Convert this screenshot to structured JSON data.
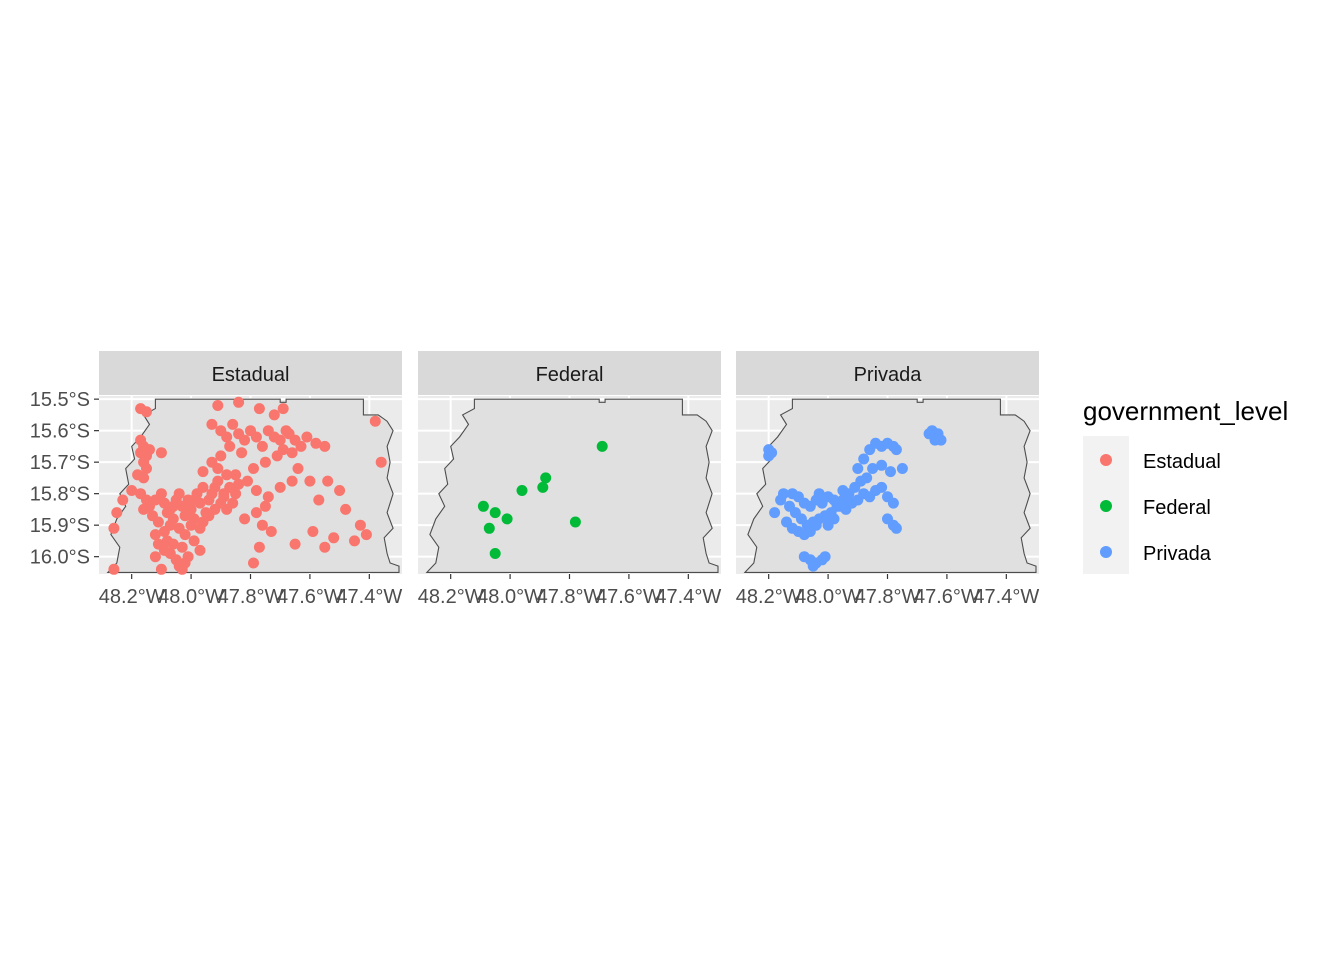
{
  "chart_data": {
    "type": "scatter",
    "subtype": "faceted map",
    "facets": [
      {
        "label": "Estadual",
        "color": "#F8766D",
        "points": [
          [
            -48.17,
            -15.53
          ],
          [
            -48.15,
            -15.54
          ],
          [
            -47.91,
            -15.52
          ],
          [
            -47.84,
            -15.51
          ],
          [
            -47.77,
            -15.53
          ],
          [
            -47.72,
            -15.55
          ],
          [
            -47.69,
            -15.53
          ],
          [
            -47.38,
            -15.57
          ],
          [
            -47.36,
            -15.7
          ],
          [
            -48.17,
            -15.63
          ],
          [
            -48.16,
            -15.65
          ],
          [
            -48.15,
            -15.68
          ],
          [
            -48.17,
            -15.67
          ],
          [
            -48.16,
            -15.7
          ],
          [
            -48.14,
            -15.66
          ],
          [
            -48.18,
            -15.74
          ],
          [
            -48.15,
            -15.72
          ],
          [
            -48.16,
            -15.75
          ],
          [
            -48.1,
            -15.67
          ],
          [
            -48.2,
            -15.79
          ],
          [
            -48.23,
            -15.82
          ],
          [
            -48.25,
            -15.86
          ],
          [
            -48.26,
            -15.91
          ],
          [
            -48.26,
            -16.04
          ],
          [
            -48.1,
            -16.04
          ],
          [
            -48.12,
            -16.0
          ],
          [
            -47.93,
            -15.58
          ],
          [
            -47.9,
            -15.6
          ],
          [
            -47.88,
            -15.62
          ],
          [
            -47.86,
            -15.58
          ],
          [
            -47.84,
            -15.61
          ],
          [
            -47.82,
            -15.63
          ],
          [
            -47.8,
            -15.6
          ],
          [
            -47.78,
            -15.62
          ],
          [
            -47.76,
            -15.65
          ],
          [
            -47.74,
            -15.6
          ],
          [
            -47.72,
            -15.62
          ],
          [
            -47.7,
            -15.63
          ],
          [
            -47.69,
            -15.66
          ],
          [
            -47.67,
            -15.61
          ],
          [
            -47.65,
            -15.63
          ],
          [
            -47.66,
            -15.67
          ],
          [
            -47.63,
            -15.65
          ],
          [
            -47.61,
            -15.62
          ],
          [
            -47.58,
            -15.64
          ],
          [
            -47.55,
            -15.65
          ],
          [
            -47.68,
            -15.6
          ],
          [
            -47.71,
            -15.68
          ],
          [
            -47.75,
            -15.7
          ],
          [
            -47.79,
            -15.72
          ],
          [
            -47.83,
            -15.67
          ],
          [
            -47.87,
            -15.65
          ],
          [
            -47.9,
            -15.68
          ],
          [
            -47.93,
            -15.7
          ],
          [
            -47.96,
            -15.73
          ],
          [
            -47.91,
            -15.76
          ],
          [
            -47.89,
            -15.8
          ],
          [
            -47.87,
            -15.78
          ],
          [
            -47.85,
            -15.74
          ],
          [
            -47.81,
            -15.76
          ],
          [
            -47.78,
            -15.79
          ],
          [
            -47.74,
            -15.81
          ],
          [
            -47.7,
            -15.78
          ],
          [
            -47.66,
            -15.76
          ],
          [
            -47.64,
            -15.72
          ],
          [
            -47.6,
            -15.76
          ],
          [
            -47.57,
            -15.82
          ],
          [
            -47.54,
            -15.76
          ],
          [
            -47.5,
            -15.79
          ],
          [
            -47.48,
            -15.85
          ],
          [
            -47.43,
            -15.9
          ],
          [
            -47.41,
            -15.93
          ],
          [
            -47.45,
            -15.95
          ],
          [
            -47.52,
            -15.94
          ],
          [
            -47.55,
            -15.97
          ],
          [
            -47.59,
            -15.92
          ],
          [
            -47.65,
            -15.96
          ],
          [
            -47.73,
            -15.92
          ],
          [
            -47.76,
            -15.9
          ],
          [
            -47.77,
            -15.97
          ],
          [
            -47.79,
            -16.02
          ],
          [
            -47.82,
            -15.88
          ],
          [
            -47.78,
            -15.86
          ],
          [
            -47.75,
            -15.84
          ],
          [
            -48.14,
            -15.84
          ],
          [
            -48.12,
            -15.82
          ],
          [
            -48.1,
            -15.8
          ],
          [
            -48.09,
            -15.83
          ],
          [
            -48.07,
            -15.85
          ],
          [
            -48.05,
            -15.82
          ],
          [
            -48.04,
            -15.8
          ],
          [
            -48.03,
            -15.84
          ],
          [
            -48.02,
            -15.87
          ],
          [
            -48.0,
            -15.85
          ],
          [
            -47.99,
            -15.82
          ],
          [
            -47.98,
            -15.8
          ],
          [
            -47.97,
            -15.83
          ],
          [
            -47.95,
            -15.86
          ],
          [
            -47.94,
            -15.82
          ],
          [
            -47.93,
            -15.8
          ],
          [
            -47.92,
            -15.85
          ],
          [
            -47.9,
            -15.83
          ],
          [
            -47.89,
            -15.81
          ],
          [
            -47.88,
            -15.85
          ],
          [
            -47.86,
            -15.83
          ],
          [
            -47.85,
            -15.8
          ],
          [
            -48.13,
            -15.87
          ],
          [
            -48.11,
            -15.89
          ],
          [
            -48.09,
            -15.92
          ],
          [
            -48.07,
            -15.9
          ],
          [
            -48.06,
            -15.88
          ],
          [
            -48.04,
            -15.91
          ],
          [
            -48.02,
            -15.93
          ],
          [
            -48.0,
            -15.9
          ],
          [
            -47.99,
            -15.88
          ],
          [
            -47.97,
            -15.91
          ],
          [
            -47.96,
            -15.89
          ],
          [
            -47.94,
            -15.87
          ],
          [
            -48.15,
            -15.82
          ],
          [
            -48.17,
            -15.8
          ],
          [
            -48.16,
            -15.85
          ],
          [
            -48.12,
            -15.93
          ],
          [
            -48.11,
            -15.96
          ],
          [
            -48.09,
            -15.98
          ],
          [
            -48.07,
            -15.99
          ],
          [
            -48.05,
            -16.01
          ],
          [
            -48.04,
            -16.03
          ],
          [
            -48.03,
            -16.04
          ],
          [
            -48.02,
            -16.02
          ],
          [
            -48.01,
            -16.0
          ],
          [
            -48.06,
            -15.96
          ],
          [
            -48.08,
            -15.95
          ],
          [
            -48.03,
            -15.97
          ],
          [
            -47.99,
            -15.95
          ],
          [
            -47.97,
            -15.98
          ],
          [
            -48.08,
            -15.86
          ],
          [
            -48.06,
            -15.84
          ],
          [
            -48.01,
            -15.82
          ],
          [
            -47.96,
            -15.78
          ],
          [
            -47.92,
            -15.78
          ],
          [
            -47.88,
            -15.74
          ],
          [
            -47.84,
            -15.77
          ],
          [
            -47.91,
            -15.72
          ]
        ]
      },
      {
        "label": "Federal",
        "color": "#00BA38",
        "points": [
          [
            -47.69,
            -15.65
          ],
          [
            -47.88,
            -15.75
          ],
          [
            -47.89,
            -15.78
          ],
          [
            -47.96,
            -15.79
          ],
          [
            -48.09,
            -15.84
          ],
          [
            -48.05,
            -15.86
          ],
          [
            -48.01,
            -15.88
          ],
          [
            -48.07,
            -15.91
          ],
          [
            -47.78,
            -15.89
          ],
          [
            -48.05,
            -15.99
          ]
        ]
      },
      {
        "label": "Privada",
        "color": "#619CFF",
        "points": [
          [
            -48.2,
            -15.66
          ],
          [
            -48.2,
            -15.68
          ],
          [
            -48.19,
            -15.67
          ],
          [
            -47.65,
            -15.6
          ],
          [
            -47.63,
            -15.61
          ],
          [
            -47.64,
            -15.63
          ],
          [
            -47.66,
            -15.61
          ],
          [
            -47.62,
            -15.63
          ],
          [
            -47.84,
            -15.64
          ],
          [
            -47.82,
            -15.65
          ],
          [
            -47.8,
            -15.64
          ],
          [
            -47.78,
            -15.65
          ],
          [
            -47.77,
            -15.66
          ],
          [
            -47.86,
            -15.66
          ],
          [
            -47.88,
            -15.69
          ],
          [
            -47.9,
            -15.72
          ],
          [
            -47.85,
            -15.72
          ],
          [
            -47.87,
            -15.75
          ],
          [
            -47.89,
            -15.76
          ],
          [
            -47.82,
            -15.71
          ],
          [
            -47.79,
            -15.73
          ],
          [
            -47.75,
            -15.72
          ],
          [
            -47.91,
            -15.78
          ],
          [
            -47.93,
            -15.8
          ],
          [
            -47.95,
            -15.82
          ],
          [
            -47.97,
            -15.84
          ],
          [
            -47.99,
            -15.86
          ],
          [
            -48.01,
            -15.87
          ],
          [
            -48.03,
            -15.88
          ],
          [
            -48.05,
            -15.89
          ],
          [
            -48.07,
            -15.9
          ],
          [
            -48.09,
            -15.88
          ],
          [
            -48.11,
            -15.86
          ],
          [
            -48.13,
            -15.84
          ],
          [
            -48.12,
            -15.8
          ],
          [
            -48.1,
            -15.81
          ],
          [
            -48.08,
            -15.83
          ],
          [
            -48.06,
            -15.84
          ],
          [
            -48.04,
            -15.82
          ],
          [
            -48.02,
            -15.83
          ],
          [
            -48.0,
            -15.81
          ],
          [
            -47.98,
            -15.82
          ],
          [
            -47.96,
            -15.84
          ],
          [
            -47.94,
            -15.85
          ],
          [
            -47.92,
            -15.83
          ],
          [
            -47.9,
            -15.82
          ],
          [
            -47.88,
            -15.8
          ],
          [
            -47.86,
            -15.81
          ],
          [
            -47.84,
            -15.79
          ],
          [
            -47.82,
            -15.78
          ],
          [
            -48.14,
            -15.89
          ],
          [
            -48.12,
            -15.91
          ],
          [
            -48.1,
            -15.92
          ],
          [
            -48.08,
            -15.93
          ],
          [
            -48.06,
            -15.92
          ],
          [
            -48.04,
            -15.9
          ],
          [
            -48.16,
            -15.82
          ],
          [
            -48.18,
            -15.86
          ],
          [
            -48.15,
            -15.8
          ],
          [
            -48.0,
            -15.9
          ],
          [
            -47.98,
            -15.88
          ],
          [
            -47.8,
            -15.81
          ],
          [
            -47.78,
            -15.83
          ],
          [
            -47.8,
            -15.88
          ],
          [
            -47.78,
            -15.9
          ],
          [
            -47.77,
            -15.91
          ],
          [
            -48.08,
            -16.0
          ],
          [
            -48.06,
            -16.01
          ],
          [
            -48.04,
            -16.02
          ],
          [
            -48.01,
            -16.0
          ],
          [
            -48.02,
            -16.01
          ],
          [
            -48.05,
            -16.03
          ],
          [
            -48.03,
            -15.8
          ],
          [
            -47.95,
            -15.79
          ]
        ]
      }
    ],
    "xlim": [
      -48.31,
      -47.29
    ],
    "ylim": [
      -16.055,
      -15.49
    ],
    "x_ticks": [
      -48.2,
      -48.0,
      -47.8,
      -47.6,
      -47.4
    ],
    "x_tick_labels": [
      "48.2°W",
      "48.0°W",
      "47.8°W",
      "47.6°W",
      "47.4°W"
    ],
    "y_ticks": [
      -15.5,
      -15.6,
      -15.7,
      -15.8,
      -15.9,
      -16.0
    ],
    "y_tick_labels": [
      "15.5°S",
      "15.6°S",
      "15.7°S",
      "15.8°S",
      "15.9°S",
      "16.0°S"
    ],
    "boundary": [
      [
        -48.28,
        -16.05
      ],
      [
        -48.25,
        -16.02
      ],
      [
        -48.24,
        -15.97
      ],
      [
        -48.27,
        -15.93
      ],
      [
        -48.25,
        -15.88
      ],
      [
        -48.22,
        -15.84
      ],
      [
        -48.24,
        -15.8
      ],
      [
        -48.21,
        -15.77
      ],
      [
        -48.22,
        -15.72
      ],
      [
        -48.19,
        -15.69
      ],
      [
        -48.2,
        -15.65
      ],
      [
        -48.17,
        -15.62
      ],
      [
        -48.14,
        -15.58
      ],
      [
        -48.16,
        -15.55
      ],
      [
        -48.12,
        -15.53
      ],
      [
        -48.12,
        -15.5
      ],
      [
        -47.7,
        -15.5
      ],
      [
        -47.7,
        -15.51
      ],
      [
        -47.68,
        -15.51
      ],
      [
        -47.68,
        -15.5
      ],
      [
        -47.42,
        -15.5
      ],
      [
        -47.42,
        -15.55
      ],
      [
        -47.37,
        -15.55
      ],
      [
        -47.34,
        -15.57
      ],
      [
        -47.32,
        -15.6
      ],
      [
        -47.34,
        -15.65
      ],
      [
        -47.33,
        -15.7
      ],
      [
        -47.34,
        -15.75
      ],
      [
        -47.32,
        -15.8
      ],
      [
        -47.34,
        -15.86
      ],
      [
        -47.32,
        -15.91
      ],
      [
        -47.35,
        -15.94
      ],
      [
        -47.34,
        -15.99
      ],
      [
        -47.33,
        -16.02
      ],
      [
        -47.3,
        -16.03
      ],
      [
        -47.3,
        -16.05
      ]
    ],
    "legend": {
      "title": "government_level",
      "position": "right",
      "entries": [
        {
          "label": "Estadual",
          "color": "#F8766D"
        },
        {
          "label": "Federal",
          "color": "#00BA38"
        },
        {
          "label": "Privada",
          "color": "#619CFF"
        }
      ]
    },
    "grid": true,
    "panel_color": "#EBEBEB",
    "strip_color": "#D9D9D9"
  }
}
